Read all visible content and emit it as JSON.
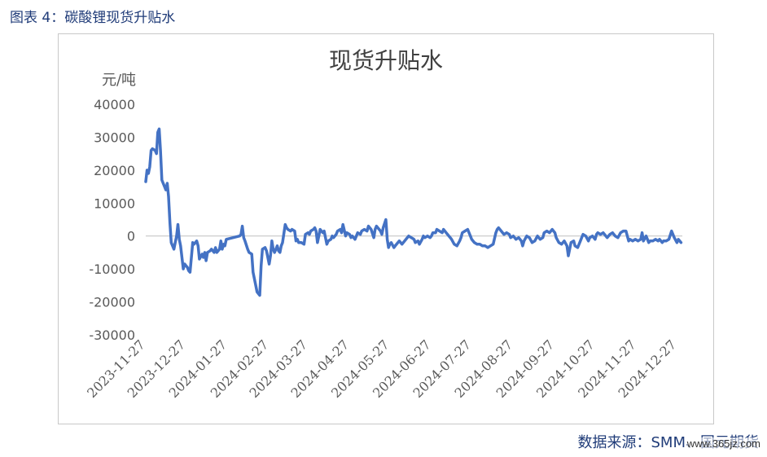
{
  "figure_caption": "图表 4：碳酸锂现货升贴水",
  "source_text": "数据来源：SMM、国元期货",
  "watermark_text": "www.365jz.com",
  "colors": {
    "line": "#4472c4",
    "axis_text": "#595959",
    "caption": "#1f3b78"
  },
  "chart_data": {
    "type": "line",
    "title": "现货升贴水",
    "ylabel": "元/吨",
    "ylim": [
      -30000,
      40000
    ],
    "yticks": [
      40000,
      30000,
      20000,
      10000,
      0,
      -10000,
      -20000,
      -30000
    ],
    "xlim": [
      "2023-11-27",
      "2024-12-31"
    ],
    "xticks": [
      "2023-11-27",
      "2023-12-27",
      "2024-01-27",
      "2024-02-27",
      "2024-03-27",
      "2024-04-27",
      "2024-05-27",
      "2024-06-27",
      "2024-07-27",
      "2024-08-27",
      "2024-09-27",
      "2024-10-27",
      "2024-11-27",
      "2024-12-27"
    ],
    "grid": false,
    "series": [
      {
        "points": [
          [
            "2023-11-27",
            16500
          ],
          [
            "2023-11-28",
            20000
          ],
          [
            "2023-11-29",
            19000
          ],
          [
            "2023-11-30",
            21000
          ],
          [
            "2023-12-01",
            26000
          ],
          [
            "2023-12-02",
            26500
          ],
          [
            "2023-12-04",
            26000
          ],
          [
            "2023-12-05",
            25000
          ],
          [
            "2023-12-06",
            31500
          ],
          [
            "2023-12-07",
            32500
          ],
          [
            "2023-12-08",
            26000
          ],
          [
            "2023-12-09",
            17000
          ],
          [
            "2023-12-11",
            15000
          ],
          [
            "2023-12-12",
            14000
          ],
          [
            "2023-12-13",
            16000
          ],
          [
            "2023-12-14",
            12000
          ],
          [
            "2023-12-15",
            4000
          ],
          [
            "2023-12-16",
            -2000
          ],
          [
            "2023-12-18",
            -4000
          ],
          [
            "2023-12-19",
            -2000
          ],
          [
            "2023-12-20",
            0
          ],
          [
            "2023-12-21",
            3500
          ],
          [
            "2023-12-22",
            -1000
          ],
          [
            "2023-12-23",
            -3000
          ],
          [
            "2023-12-25",
            -10000
          ],
          [
            "2023-12-26",
            -8500
          ],
          [
            "2023-12-27",
            -9000
          ],
          [
            "2023-12-28",
            -9500
          ],
          [
            "2023-12-29",
            -10500
          ],
          [
            "2023-12-30",
            -11000
          ],
          [
            "2024-01-01",
            -2000
          ],
          [
            "2024-01-02",
            -2500
          ],
          [
            "2024-01-04",
            -1500
          ],
          [
            "2024-01-05",
            -3000
          ],
          [
            "2024-01-06",
            -7000
          ],
          [
            "2024-01-08",
            -5500
          ],
          [
            "2024-01-09",
            -6500
          ],
          [
            "2024-01-10",
            -5000
          ],
          [
            "2024-01-11",
            -7500
          ],
          [
            "2024-01-12",
            -5000
          ],
          [
            "2024-01-14",
            -4500
          ],
          [
            "2024-01-15",
            -4000
          ],
          [
            "2024-01-17",
            -5000
          ],
          [
            "2024-01-18",
            -3500
          ],
          [
            "2024-01-19",
            -5000
          ],
          [
            "2024-01-21",
            -4000
          ],
          [
            "2024-01-22",
            -1500
          ],
          [
            "2024-01-23",
            -4000
          ],
          [
            "2024-01-24",
            -2500
          ],
          [
            "2024-01-25",
            -3000
          ],
          [
            "2024-01-26",
            -1000
          ],
          [
            "2024-02-05",
            0
          ],
          [
            "2024-02-06",
            500
          ],
          [
            "2024-02-07",
            3000
          ],
          [
            "2024-02-08",
            -500
          ],
          [
            "2024-02-09",
            -1500
          ],
          [
            "2024-02-11",
            -4000
          ],
          [
            "2024-02-12",
            -5000
          ],
          [
            "2024-02-14",
            -5500
          ],
          [
            "2024-02-15",
            -11000
          ],
          [
            "2024-02-17",
            -15000
          ],
          [
            "2024-02-18",
            -17000
          ],
          [
            "2024-02-20",
            -18000
          ],
          [
            "2024-02-21",
            -9000
          ],
          [
            "2024-02-22",
            -4000
          ],
          [
            "2024-02-24",
            -3500
          ],
          [
            "2024-02-25",
            -4500
          ],
          [
            "2024-02-27",
            -8500
          ],
          [
            "2024-02-28",
            -6000
          ],
          [
            "2024-02-29",
            -1500
          ],
          [
            "2024-03-01",
            -4000
          ],
          [
            "2024-03-02",
            -5000
          ],
          [
            "2024-03-04",
            -3000
          ],
          [
            "2024-03-05",
            -4500
          ],
          [
            "2024-03-06",
            -5000
          ],
          [
            "2024-03-07",
            -3000
          ],
          [
            "2024-03-08",
            -2000
          ],
          [
            "2024-03-10",
            3500
          ],
          [
            "2024-03-11",
            2500
          ],
          [
            "2024-03-12",
            2000
          ],
          [
            "2024-03-14",
            1500
          ],
          [
            "2024-03-15",
            2000
          ],
          [
            "2024-03-17",
            1500
          ],
          [
            "2024-03-18",
            -1500
          ],
          [
            "2024-03-19",
            -1000
          ],
          [
            "2024-03-20",
            -2000
          ],
          [
            "2024-03-22",
            -2000
          ],
          [
            "2024-03-24",
            -2500
          ],
          [
            "2024-03-25",
            500
          ],
          [
            "2024-03-27",
            1000
          ],
          [
            "2024-03-28",
            500
          ],
          [
            "2024-03-29",
            1500
          ],
          [
            "2024-03-31",
            2000
          ],
          [
            "2024-04-01",
            2500
          ],
          [
            "2024-04-02",
            1500
          ],
          [
            "2024-04-03",
            -2000
          ],
          [
            "2024-04-05",
            2000
          ],
          [
            "2024-04-07",
            1000
          ],
          [
            "2024-04-08",
            1500
          ],
          [
            "2024-04-10",
            -2500
          ],
          [
            "2024-04-11",
            -1500
          ],
          [
            "2024-04-13",
            -1000
          ],
          [
            "2024-04-14",
            0
          ],
          [
            "2024-04-15",
            -500
          ],
          [
            "2024-04-17",
            500
          ],
          [
            "2024-04-18",
            1500
          ],
          [
            "2024-04-20",
            2000
          ],
          [
            "2024-04-21",
            1000
          ],
          [
            "2024-04-22",
            3500
          ],
          [
            "2024-04-24",
            0
          ],
          [
            "2024-04-25",
            1000
          ],
          [
            "2024-04-27",
            500
          ],
          [
            "2024-04-28",
            -500
          ],
          [
            "2024-04-29",
            0
          ],
          [
            "2024-05-01",
            -1000
          ],
          [
            "2024-05-03",
            1000
          ],
          [
            "2024-05-05",
            500
          ],
          [
            "2024-05-06",
            1500
          ],
          [
            "2024-05-08",
            2000
          ],
          [
            "2024-05-10",
            1500
          ],
          [
            "2024-05-11",
            3000
          ],
          [
            "2024-05-13",
            2000
          ],
          [
            "2024-05-15",
            -500
          ],
          [
            "2024-05-16",
            2000
          ],
          [
            "2024-05-17",
            3000
          ],
          [
            "2024-05-19",
            2000
          ],
          [
            "2024-05-20",
            1500
          ],
          [
            "2024-05-21",
            500
          ],
          [
            "2024-05-22",
            2500
          ],
          [
            "2024-05-24",
            5000
          ],
          [
            "2024-05-25",
            -1000
          ],
          [
            "2024-05-26",
            -3500
          ],
          [
            "2024-05-27",
            -2500
          ],
          [
            "2024-05-28",
            -2000
          ],
          [
            "2024-05-30",
            -3500
          ],
          [
            "2024-05-31",
            -3000
          ],
          [
            "2024-06-02",
            -2000
          ],
          [
            "2024-06-03",
            -1500
          ],
          [
            "2024-06-05",
            -2500
          ],
          [
            "2024-06-06",
            -2000
          ],
          [
            "2024-06-08",
            -1000
          ],
          [
            "2024-06-10",
            0
          ],
          [
            "2024-06-12",
            -500
          ],
          [
            "2024-06-14",
            -1000
          ],
          [
            "2024-06-15",
            -2000
          ],
          [
            "2024-06-17",
            -1500
          ],
          [
            "2024-06-18",
            -2500
          ],
          [
            "2024-06-20",
            -1000
          ],
          [
            "2024-06-21",
            0
          ],
          [
            "2024-06-22",
            -500
          ],
          [
            "2024-06-24",
            0
          ],
          [
            "2024-06-26",
            -500
          ],
          [
            "2024-06-27",
            0
          ],
          [
            "2024-06-28",
            1000
          ],
          [
            "2024-06-30",
            1000
          ],
          [
            "2024-07-01",
            2000
          ],
          [
            "2024-07-03",
            1500
          ],
          [
            "2024-07-05",
            1000
          ],
          [
            "2024-07-06",
            2000
          ],
          [
            "2024-07-08",
            1000
          ],
          [
            "2024-07-10",
            0
          ],
          [
            "2024-07-11",
            -500
          ],
          [
            "2024-07-12",
            -1000
          ],
          [
            "2024-07-14",
            -2500
          ],
          [
            "2024-07-16",
            -3000
          ],
          [
            "2024-07-18",
            -1500
          ],
          [
            "2024-07-19",
            -500
          ],
          [
            "2024-07-20",
            1000
          ],
          [
            "2024-07-22",
            1500
          ],
          [
            "2024-07-24",
            2000
          ],
          [
            "2024-07-26",
            0
          ],
          [
            "2024-07-27",
            -1000
          ],
          [
            "2024-07-29",
            -2000
          ],
          [
            "2024-07-31",
            -2500
          ],
          [
            "2024-08-02",
            -2500
          ],
          [
            "2024-08-04",
            -3000
          ],
          [
            "2024-08-06",
            -3000
          ],
          [
            "2024-08-08",
            -3500
          ],
          [
            "2024-08-10",
            -3000
          ],
          [
            "2024-08-12",
            -2500
          ],
          [
            "2024-08-14",
            1000
          ],
          [
            "2024-08-15",
            2000
          ],
          [
            "2024-08-16",
            2500
          ],
          [
            "2024-08-18",
            1500
          ],
          [
            "2024-08-20",
            500
          ],
          [
            "2024-08-22",
            1000
          ],
          [
            "2024-08-24",
            500
          ],
          [
            "2024-08-25",
            -500
          ],
          [
            "2024-08-27",
            0
          ],
          [
            "2024-08-29",
            -1000
          ],
          [
            "2024-08-31",
            -500
          ],
          [
            "2024-09-02",
            -1500
          ],
          [
            "2024-09-03",
            -3000
          ],
          [
            "2024-09-04",
            -1500
          ],
          [
            "2024-09-06",
            0
          ],
          [
            "2024-09-08",
            -500
          ],
          [
            "2024-09-10",
            -2000
          ],
          [
            "2024-09-12",
            -1500
          ],
          [
            "2024-09-14",
            0
          ],
          [
            "2024-09-16",
            -1000
          ],
          [
            "2024-09-18",
            -500
          ],
          [
            "2024-09-19",
            1000
          ],
          [
            "2024-09-21",
            1500
          ],
          [
            "2024-09-23",
            1000
          ],
          [
            "2024-09-25",
            2000
          ],
          [
            "2024-09-27",
            1000
          ],
          [
            "2024-09-28",
            -500
          ],
          [
            "2024-09-30",
            -2000
          ],
          [
            "2024-10-02",
            -2500
          ],
          [
            "2024-10-04",
            -1500
          ],
          [
            "2024-10-06",
            -3000
          ],
          [
            "2024-10-07",
            -6000
          ],
          [
            "2024-10-09",
            -2000
          ],
          [
            "2024-10-11",
            -1500
          ],
          [
            "2024-10-12",
            -3000
          ],
          [
            "2024-10-14",
            -3500
          ],
          [
            "2024-10-16",
            -1500
          ],
          [
            "2024-10-17",
            -500
          ],
          [
            "2024-10-18",
            500
          ],
          [
            "2024-10-20",
            0
          ],
          [
            "2024-10-22",
            -1500
          ],
          [
            "2024-10-23",
            -500
          ],
          [
            "2024-10-25",
            0
          ],
          [
            "2024-10-27",
            -1000
          ],
          [
            "2024-10-28",
            500
          ],
          [
            "2024-10-29",
            1000
          ],
          [
            "2024-10-31",
            500
          ],
          [
            "2024-11-02",
            1000
          ],
          [
            "2024-11-04",
            0
          ],
          [
            "2024-11-05",
            -500
          ],
          [
            "2024-11-07",
            500
          ],
          [
            "2024-11-09",
            1000
          ],
          [
            "2024-11-11",
            0
          ],
          [
            "2024-11-13",
            -500
          ],
          [
            "2024-11-15",
            1000
          ],
          [
            "2024-11-17",
            1500
          ],
          [
            "2024-11-19",
            1500
          ],
          [
            "2024-11-21",
            -1500
          ],
          [
            "2024-11-22",
            -1000
          ],
          [
            "2024-11-24",
            -1500
          ],
          [
            "2024-11-26",
            -1000
          ],
          [
            "2024-11-28",
            -1500
          ],
          [
            "2024-11-30",
            -1000
          ],
          [
            "2024-12-01",
            1000
          ],
          [
            "2024-12-02",
            -1500
          ],
          [
            "2024-12-04",
            0
          ],
          [
            "2024-12-06",
            -2000
          ],
          [
            "2024-12-07",
            -1500
          ],
          [
            "2024-12-09",
            -1500
          ],
          [
            "2024-12-11",
            -1000
          ],
          [
            "2024-12-13",
            -1500
          ],
          [
            "2024-12-14",
            -1000
          ],
          [
            "2024-12-16",
            -2000
          ],
          [
            "2024-12-17",
            -1500
          ],
          [
            "2024-12-19",
            -1500
          ],
          [
            "2024-12-21",
            -1000
          ],
          [
            "2024-12-23",
            1500
          ],
          [
            "2024-12-25",
            -500
          ],
          [
            "2024-12-27",
            -2000
          ],
          [
            "2024-12-28",
            -1000
          ],
          [
            "2024-12-30",
            -2000
          ]
        ]
      }
    ]
  }
}
